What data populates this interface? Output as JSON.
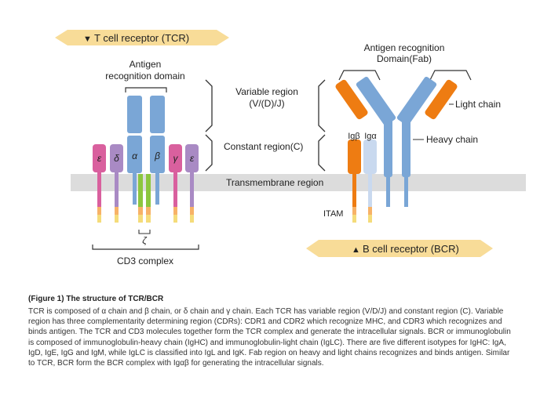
{
  "tcr_banner": "T cell receptor (TCR)",
  "tcr_banner_marker": "▼",
  "bcr_banner": "B cell receptor (BCR)",
  "bcr_banner_marker": "▲",
  "tcr_antigen_label_line1": "Antigen",
  "tcr_antigen_label_line2": "recognition domain",
  "variable_region_line1": "Variable region",
  "variable_region_line2": "(V/(D)/J)",
  "constant_region": "Constant region(C)",
  "transmembrane_region": "Transmembrane region",
  "cd3_complex": "CD3 complex",
  "chain_symbols": {
    "epsilon_left": "ε",
    "delta": "δ",
    "alpha": "α",
    "beta": "β",
    "gamma": "γ",
    "epsilon_right": "ε",
    "zeta": "ζ"
  },
  "bcr_antigen_label_line1": "Antigen recognition",
  "bcr_antigen_label_line2": "Domain(Fab)",
  "light_chain": "Light chain",
  "heavy_chain": "Heavy chain",
  "ig_beta": "Igβ",
  "ig_alpha": "Igα",
  "itam": "ITAM",
  "caption_title": "(Figure 1) The structure of TCR/BCR",
  "caption_body": "TCR is composed of α chain and β chain, or δ chain and γ chain. Each TCR has variable region (V/D/J) and constant region (C). Variable region has three complementarity determining region (CDRs): CDR1 and CDR2 which recognize MHC, and CDR3 which recognizes and binds antigen. The TCR and CD3 molecules together form the TCR complex and generate the intracellular signals. BCR or immunoglobulin is composed of immunoglobulin-heavy chain (IgHC) and immunoglobulin-light chain (IgLC). There are five different isotypes for IgHC: IgA, IgD, IgE, IgG and IgM, while IgLC is classified into IgL and IgK. Fab region on heavy and light chains recognizes and binds antigen. Similar to TCR, BCR form the BCR complex with Igαβ for generating the intracellular signals.",
  "colors": {
    "banner": "#f8dc98",
    "membrane": "#dcdcdc",
    "tcr_blue": "#7aa6d6",
    "cd3_pink": "#d9609e",
    "cd3_purple": "#a98ac4",
    "zeta_green": "#8cc63f",
    "itam_orange": "#f7b267",
    "itam_yellow": "#f5dc7a",
    "bcr_orange": "#ee7c12",
    "bcr_blue": "#7aa6d6",
    "ig_alpha_lightblue": "#c9d9ef"
  }
}
